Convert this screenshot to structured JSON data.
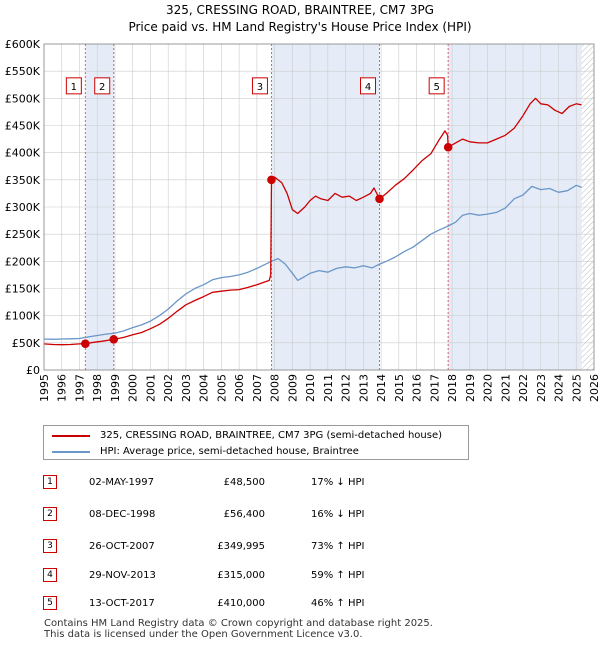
{
  "title_line1": "325, CRESSING ROAD, BRAINTREE, CM7 3PG",
  "title_line2": "Price paid vs. HM Land Registry's House Price Index (HPI)",
  "chart_data": {
    "type": "line",
    "x_range": [
      1995,
      2026
    ],
    "y_range": [
      0,
      600000
    ],
    "y_ticks": [
      0,
      50000,
      100000,
      150000,
      200000,
      250000,
      300000,
      350000,
      400000,
      450000,
      500000,
      550000,
      600000
    ],
    "y_tick_labels": [
      "£0",
      "£50K",
      "£100K",
      "£150K",
      "£200K",
      "£250K",
      "£300K",
      "£350K",
      "£400K",
      "£450K",
      "£500K",
      "£550K",
      "£600K"
    ],
    "x_ticks": [
      1995,
      1996,
      1997,
      1998,
      1999,
      2000,
      2001,
      2002,
      2003,
      2004,
      2005,
      2006,
      2007,
      2008,
      2009,
      2010,
      2011,
      2012,
      2013,
      2014,
      2015,
      2016,
      2017,
      2018,
      2019,
      2020,
      2021,
      2022,
      2023,
      2024,
      2025,
      2026
    ],
    "x_tick_labels": [
      "1995",
      "1996",
      "1997",
      "1998",
      "1999",
      "2000",
      "2001",
      "2002",
      "2003",
      "2004",
      "2005",
      "2006",
      "2007",
      "2008",
      "2009",
      "2010",
      "2011",
      "2012",
      "2013",
      "2014",
      "2015",
      "2016",
      "2017",
      "2018",
      "2019",
      "2020",
      "2021",
      "2022",
      "2023",
      "2024",
      "2025",
      "2026"
    ],
    "shaded_spans": [
      [
        1997.33,
        1998.93
      ],
      [
        2007.82,
        2013.91
      ],
      [
        2017.78,
        2025.3
      ]
    ],
    "future_hatch_from": 2025.3,
    "series": [
      {
        "name": "325, CRESSING ROAD, BRAINTREE, CM7 3PG (semi-detached house)",
        "color": "#cc0000",
        "points": [
          [
            1995.0,
            48000
          ],
          [
            1995.5,
            47000
          ],
          [
            1996.0,
            46500
          ],
          [
            1996.5,
            47000
          ],
          [
            1997.0,
            48000
          ],
          [
            1997.33,
            48500
          ],
          [
            1997.8,
            51000
          ],
          [
            1998.3,
            53000
          ],
          [
            1998.93,
            56400
          ],
          [
            1999.5,
            60000
          ],
          [
            2000.0,
            65000
          ],
          [
            2000.5,
            69000
          ],
          [
            2001.0,
            76000
          ],
          [
            2001.5,
            84000
          ],
          [
            2002.0,
            95000
          ],
          [
            2002.5,
            108000
          ],
          [
            2003.0,
            120000
          ],
          [
            2003.5,
            128000
          ],
          [
            2004.0,
            135000
          ],
          [
            2004.5,
            143000
          ],
          [
            2005.0,
            145000
          ],
          [
            2005.5,
            147000
          ],
          [
            2006.0,
            148000
          ],
          [
            2006.5,
            152000
          ],
          [
            2007.0,
            157000
          ],
          [
            2007.7,
            165000
          ],
          [
            2007.78,
            175000
          ],
          [
            2007.82,
            349995
          ],
          [
            2008.0,
            355000
          ],
          [
            2008.4,
            345000
          ],
          [
            2008.7,
            325000
          ],
          [
            2009.0,
            295000
          ],
          [
            2009.3,
            288000
          ],
          [
            2009.7,
            300000
          ],
          [
            2010.0,
            312000
          ],
          [
            2010.3,
            320000
          ],
          [
            2010.6,
            315000
          ],
          [
            2011.0,
            312000
          ],
          [
            2011.4,
            325000
          ],
          [
            2011.8,
            318000
          ],
          [
            2012.2,
            320000
          ],
          [
            2012.6,
            312000
          ],
          [
            2013.0,
            318000
          ],
          [
            2013.4,
            325000
          ],
          [
            2013.6,
            335000
          ],
          [
            2013.91,
            315000
          ],
          [
            2014.3,
            325000
          ],
          [
            2014.8,
            340000
          ],
          [
            2015.3,
            352000
          ],
          [
            2015.8,
            368000
          ],
          [
            2016.3,
            385000
          ],
          [
            2016.8,
            398000
          ],
          [
            2017.3,
            425000
          ],
          [
            2017.6,
            440000
          ],
          [
            2017.75,
            432000
          ],
          [
            2017.78,
            410000
          ],
          [
            2018.2,
            418000
          ],
          [
            2018.6,
            425000
          ],
          [
            2019.0,
            420000
          ],
          [
            2019.5,
            418000
          ],
          [
            2020.0,
            418000
          ],
          [
            2020.5,
            425000
          ],
          [
            2021.0,
            432000
          ],
          [
            2021.5,
            445000
          ],
          [
            2022.0,
            468000
          ],
          [
            2022.4,
            490000
          ],
          [
            2022.7,
            500000
          ],
          [
            2023.0,
            490000
          ],
          [
            2023.4,
            488000
          ],
          [
            2023.8,
            478000
          ],
          [
            2024.2,
            472000
          ],
          [
            2024.6,
            485000
          ],
          [
            2025.0,
            490000
          ],
          [
            2025.3,
            488000
          ]
        ]
      },
      {
        "name": "HPI: Average price, semi-detached house, Braintree",
        "color": "#6a96c8",
        "points": [
          [
            1995.0,
            57000
          ],
          [
            1995.5,
            56500
          ],
          [
            1996.0,
            57000
          ],
          [
            1996.5,
            57500
          ],
          [
            1997.0,
            58000
          ],
          [
            1997.5,
            61000
          ],
          [
            1998.0,
            63500
          ],
          [
            1998.5,
            66000
          ],
          [
            1999.0,
            68000
          ],
          [
            1999.5,
            72000
          ],
          [
            2000.0,
            78000
          ],
          [
            2000.5,
            83000
          ],
          [
            2001.0,
            90000
          ],
          [
            2001.5,
            100000
          ],
          [
            2002.0,
            112000
          ],
          [
            2002.5,
            127000
          ],
          [
            2003.0,
            140000
          ],
          [
            2003.5,
            150000
          ],
          [
            2004.0,
            157000
          ],
          [
            2004.5,
            166000
          ],
          [
            2005.0,
            170000
          ],
          [
            2005.5,
            172000
          ],
          [
            2006.0,
            175000
          ],
          [
            2006.5,
            180000
          ],
          [
            2007.0,
            187000
          ],
          [
            2007.5,
            195000
          ],
          [
            2007.82,
            200000
          ],
          [
            2008.2,
            205000
          ],
          [
            2008.6,
            195000
          ],
          [
            2009.0,
            178000
          ],
          [
            2009.3,
            165000
          ],
          [
            2009.7,
            172000
          ],
          [
            2010.0,
            178000
          ],
          [
            2010.5,
            183000
          ],
          [
            2011.0,
            180000
          ],
          [
            2011.5,
            187000
          ],
          [
            2012.0,
            190000
          ],
          [
            2012.5,
            188000
          ],
          [
            2013.0,
            192000
          ],
          [
            2013.5,
            188000
          ],
          [
            2013.91,
            195000
          ],
          [
            2014.3,
            200000
          ],
          [
            2014.8,
            208000
          ],
          [
            2015.3,
            218000
          ],
          [
            2015.8,
            226000
          ],
          [
            2016.3,
            238000
          ],
          [
            2016.8,
            250000
          ],
          [
            2017.3,
            258000
          ],
          [
            2017.78,
            265000
          ],
          [
            2018.2,
            272000
          ],
          [
            2018.6,
            285000
          ],
          [
            2019.0,
            288000
          ],
          [
            2019.5,
            285000
          ],
          [
            2020.0,
            287000
          ],
          [
            2020.5,
            290000
          ],
          [
            2021.0,
            298000
          ],
          [
            2021.5,
            315000
          ],
          [
            2022.0,
            322000
          ],
          [
            2022.5,
            338000
          ],
          [
            2023.0,
            332000
          ],
          [
            2023.5,
            334000
          ],
          [
            2024.0,
            327000
          ],
          [
            2024.5,
            330000
          ],
          [
            2025.0,
            340000
          ],
          [
            2025.3,
            336000
          ]
        ]
      }
    ],
    "sales": [
      {
        "label": "1",
        "x": 1997.33,
        "y": 48500
      },
      {
        "label": "2",
        "x": 1998.93,
        "y": 56400
      },
      {
        "label": "3",
        "x": 2007.82,
        "y": 349995
      },
      {
        "label": "4",
        "x": 2013.91,
        "y": 315000
      },
      {
        "label": "5",
        "x": 2017.78,
        "y": 410000
      }
    ],
    "marker_badge_y": 523000
  },
  "legend": {
    "red_label": "325, CRESSING ROAD, BRAINTREE, CM7 3PG (semi-detached house)",
    "blue_label": "HPI: Average price, semi-detached house, Braintree",
    "red_color": "#cc0000",
    "blue_color": "#6a96c8"
  },
  "transactions": [
    {
      "num": "1",
      "date": "02-MAY-1997",
      "price": "£48,500",
      "hpi": "17% ↓ HPI"
    },
    {
      "num": "2",
      "date": "08-DEC-1998",
      "price": "£56,400",
      "hpi": "16% ↓ HPI"
    },
    {
      "num": "3",
      "date": "26-OCT-2007",
      "price": "£349,995",
      "hpi": "73% ↑ HPI"
    },
    {
      "num": "4",
      "date": "29-NOV-2013",
      "price": "£315,000",
      "hpi": "59% ↑ HPI"
    },
    {
      "num": "5",
      "date": "13-OCT-2017",
      "price": "£410,000",
      "hpi": "46% ↑ HPI"
    }
  ],
  "footer": {
    "line1": "Contains HM Land Registry data © Crown copyright and database right 2025.",
    "line2": "This data is licensed under the Open Government Licence v3.0."
  }
}
